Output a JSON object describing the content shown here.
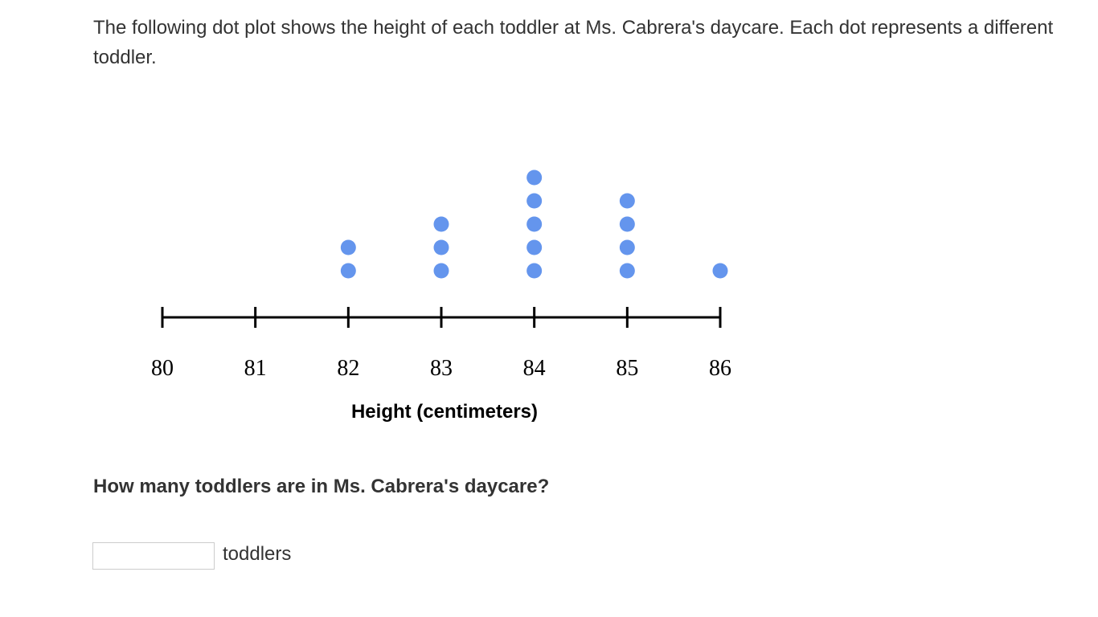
{
  "prompt": "The following dot plot shows the height of each toddler at Ms. Cabrera's daycare. Each dot represents a different toddler.",
  "question": "How many toddlers are in Ms. Cabrera's daycare?",
  "answer": {
    "value": "",
    "unit": "toddlers"
  },
  "chart_data": {
    "type": "dot",
    "xlabel": "Height (centimeters)",
    "xlim": [
      80,
      86
    ],
    "ticks": [
      "80",
      "81",
      "82",
      "83",
      "84",
      "85",
      "86"
    ],
    "categories": [
      80,
      81,
      82,
      83,
      84,
      85,
      86
    ],
    "counts": [
      0,
      0,
      2,
      3,
      5,
      4,
      1
    ],
    "dot_color": "#6495ed",
    "grid": false
  }
}
